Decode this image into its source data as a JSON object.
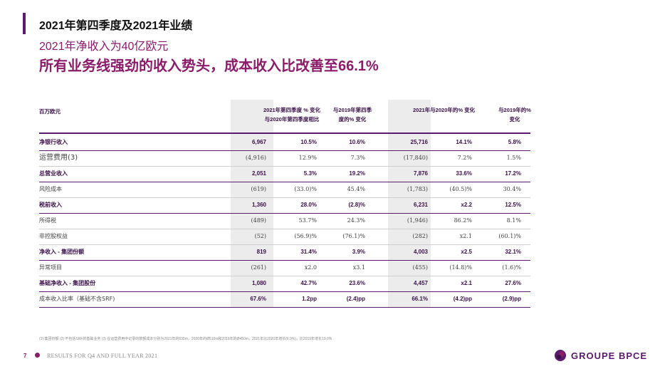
{
  "page": {
    "title": "2021年第四季度及2021年业绩",
    "subtitle1": "2021年净收入为40亿欧元",
    "subtitle2": "所有业务线强劲的收入势头，成本收入比改善至66.1%"
  },
  "table": {
    "unit_header": "百万欧元",
    "col_q4_line1": "2021年第四季度 % 变化",
    "col_q4_line2": "与2020年第四季度相比",
    "col_q4v19_line1": "与2019年第四季",
    "col_q4v19_line2": "度的% 变化",
    "col_fy": "2021年与2020年的% 变化",
    "col_fyv19_line1": "与2019年的%",
    "col_fyv19_line2": "变化",
    "rows": [
      {
        "label": "净银行收入",
        "q4": "6,967",
        "q4_v20": "10.5%",
        "q4_v19": "10.6%",
        "fy": "25,716",
        "fy_v20": "14.1%",
        "fy_v19": "5.8%"
      },
      {
        "label": "运营费用(3)",
        "q4": "(4,916)",
        "q4_v20": "12.9%",
        "q4_v19": "7.3%",
        "fy": "(17,840)",
        "fy_v20": "7.2%",
        "fy_v19": "1.5%"
      },
      {
        "label": "总营业收入",
        "q4": "2,051",
        "q4_v20": "5.3%",
        "q4_v19": "19.2%",
        "fy": "7,876",
        "fy_v20": "33.6%",
        "fy_v19": "17.2%"
      },
      {
        "label": "风险成本",
        "q4": "(619)",
        "q4_v20": "(33.0)%",
        "q4_v19": "45.4%",
        "fy": "(1,783)",
        "fy_v20": "(40.5)%",
        "fy_v19": "30.4%"
      },
      {
        "label": "税前收入",
        "q4": "1,360",
        "q4_v20": "28.0%",
        "q4_v19": "(2.8)%",
        "fy": "6,231",
        "fy_v20": "x2.2",
        "fy_v19": "12.5%"
      },
      {
        "label": "所得税",
        "q4": "(489)",
        "q4_v20": "53.7%",
        "q4_v19": "24.3%",
        "fy": "(1,946)",
        "fy_v20": "86.2%",
        "fy_v19": "8.1%"
      },
      {
        "label": "非控股权益",
        "q4": "(52)",
        "q4_v20": "(56.9)%",
        "q4_v19": "(76.1)%",
        "fy": "(282)",
        "fy_v20": "x2.1",
        "fy_v19": "(60.1)%"
      },
      {
        "label": "净收入 - 集团份额",
        "q4": "819",
        "q4_v20": "31.4%",
        "q4_v19": "3.9%",
        "fy": "4,003",
        "fy_v20": "x2.5",
        "fy_v19": "32.1%"
      },
      {
        "label": "异常项目",
        "q4": "(261)",
        "q4_v20": "x2.0",
        "q4_v19": "x3.1",
        "fy": "(455)",
        "fy_v20": "(14.8)%",
        "fy_v19": "(1.6)%"
      },
      {
        "label": "基础净收入 - 集团股份",
        "q4": "1,080",
        "q4_v20": "42.7%",
        "q4_v19": "23.6%",
        "fy": "4,457",
        "fy_v20": "x2.1",
        "fy_v19": "27.6%"
      },
      {
        "label": "成本收入比率（基础不含SRF)",
        "q4": "67.6%",
        "q4_v20": "1.2pp",
        "q4_v19": "(2.4)pp",
        "fy": "66.1%",
        "fy_v20": "(4.2)pp",
        "fy_v19": "(2.9)pp"
      }
    ]
  },
  "footnote": "(1) 集团份额 (2) 不包括SRF的基础业务 (3) 在运营费用中记录的数额成本分别为2021年的635m，2020年的Ø510m和2019年的Ø450m，2021年比2020年增长(6.9%)，比2019年增长19.0%",
  "footer": {
    "page_number": "7",
    "text": "RESULTS FOR Q4 AND FULL YEAR 2021",
    "logo_text": "GROUPE BPCE"
  },
  "colors": {
    "brand_purple": "#5a1a6e",
    "accent_magenta": "#8a1c6a"
  }
}
